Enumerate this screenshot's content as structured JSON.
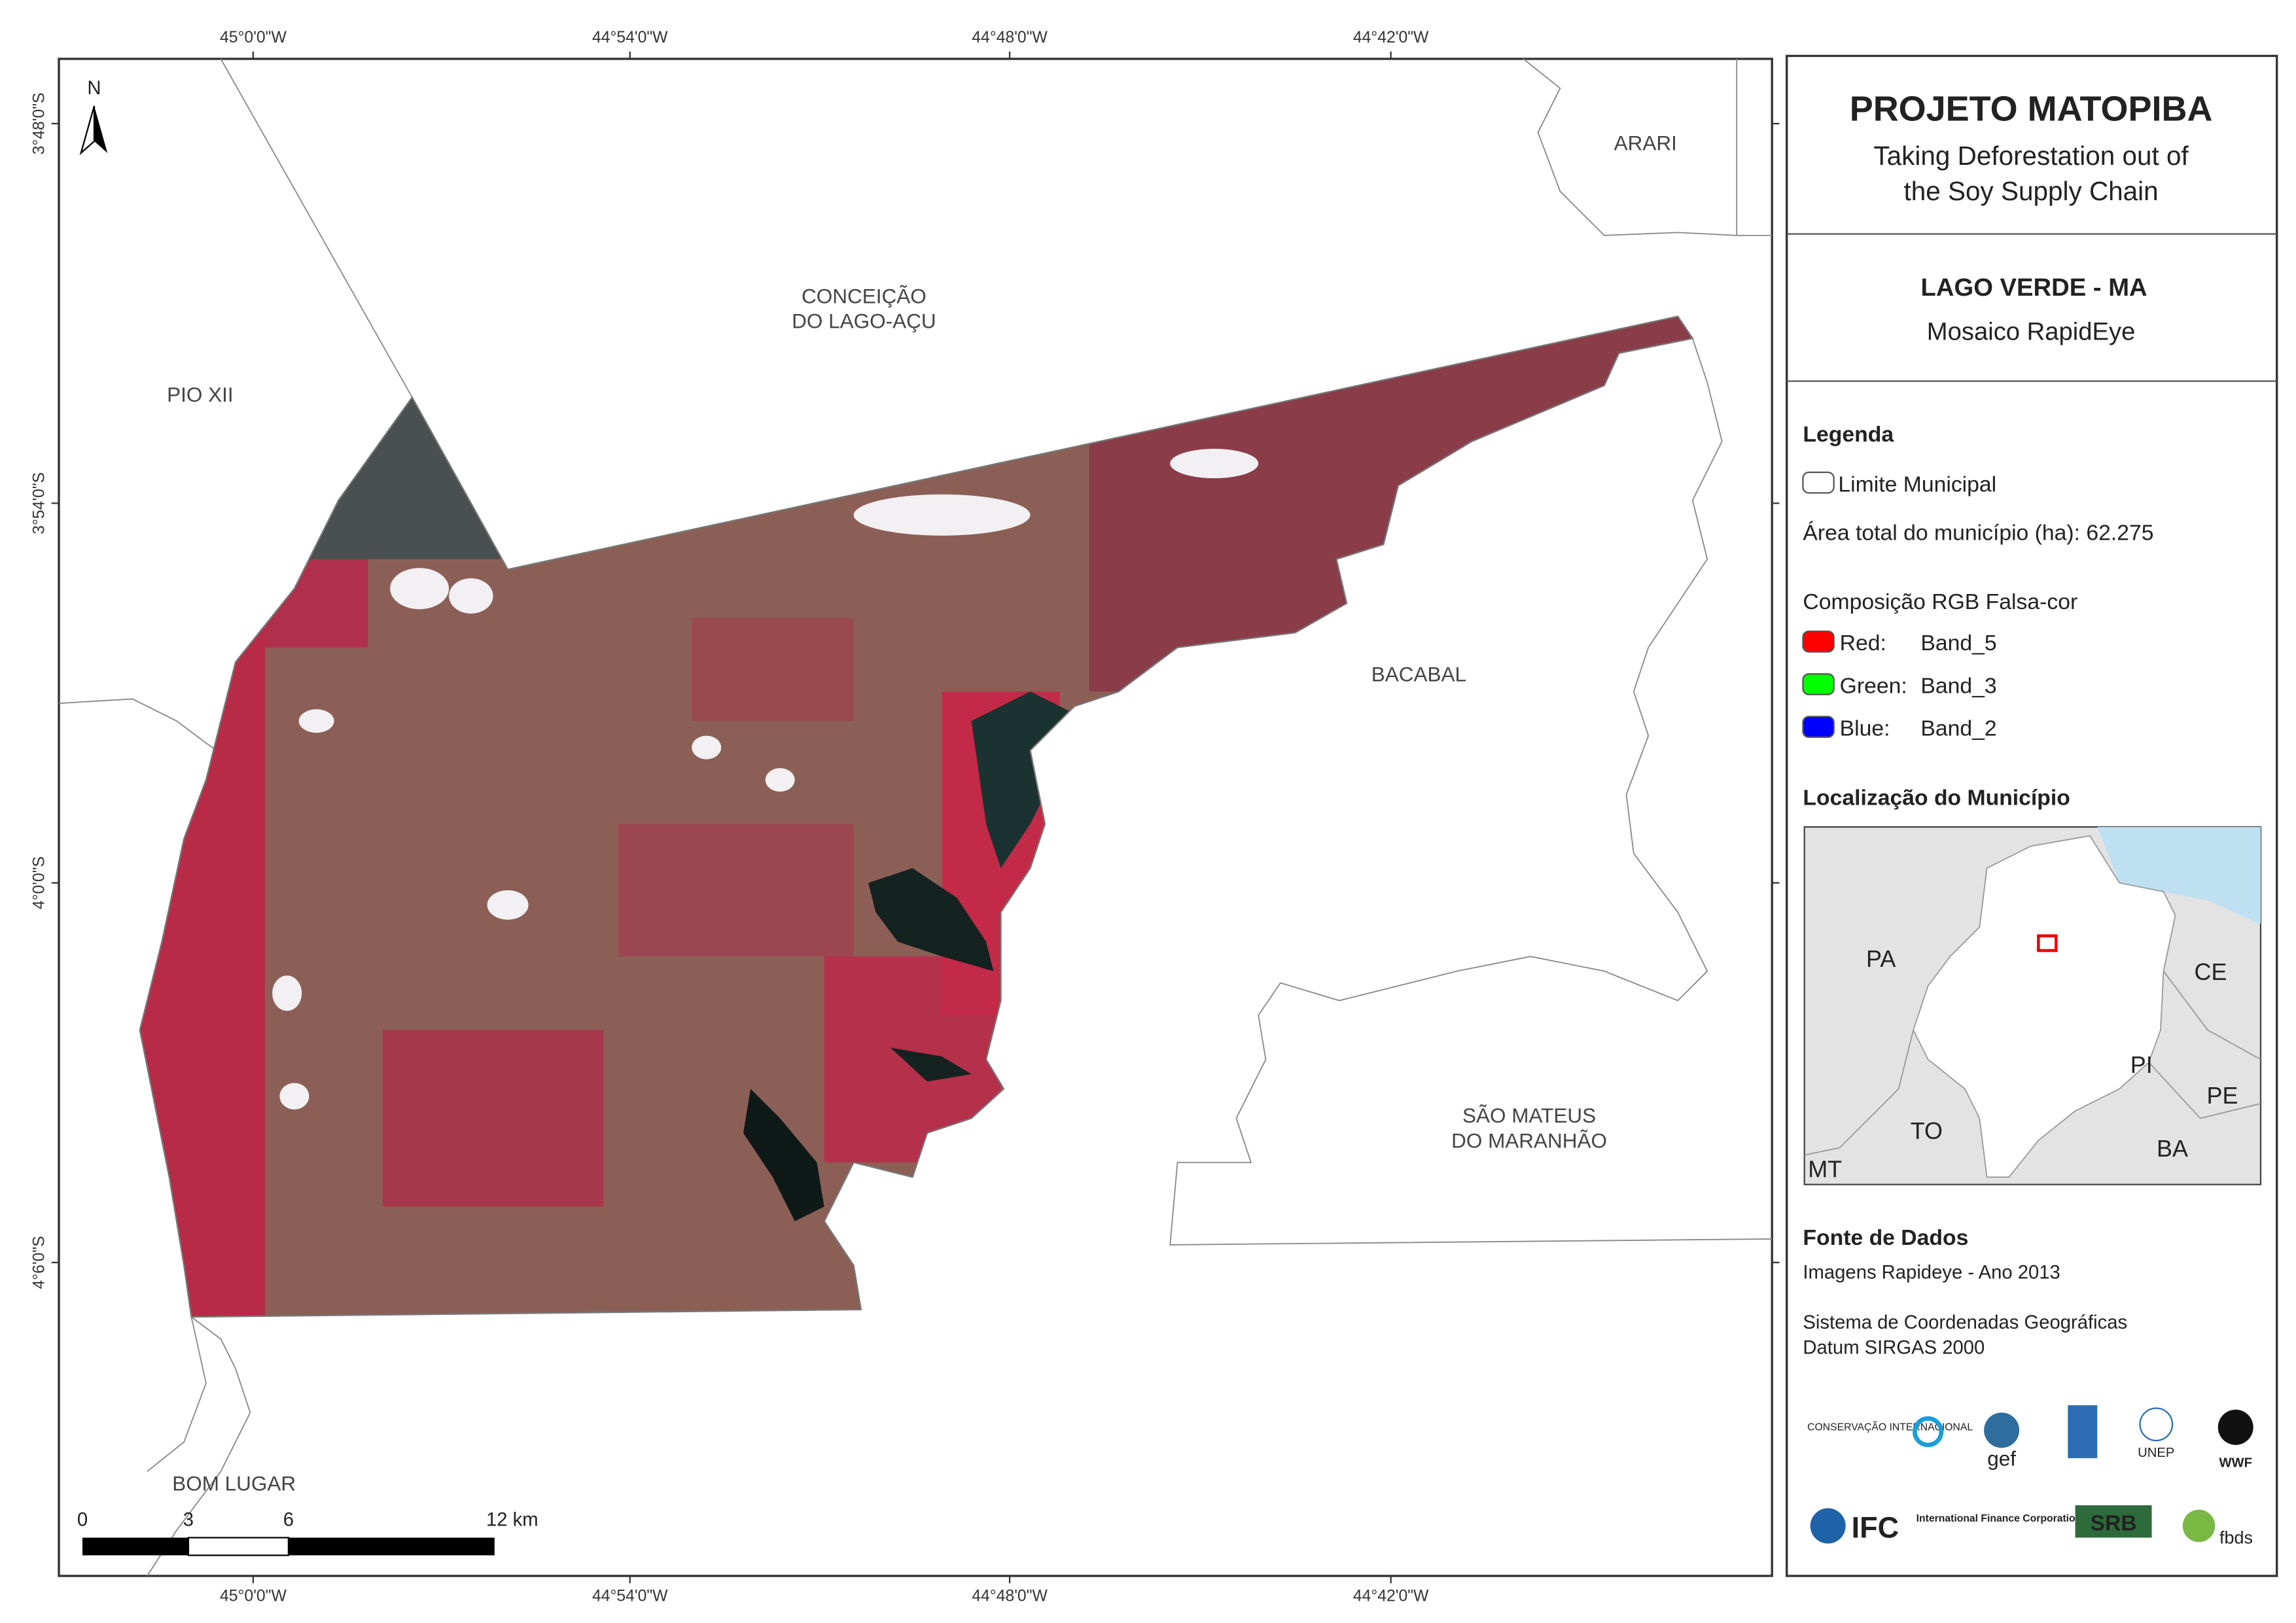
{
  "map": {
    "north_arrow": "N",
    "lon_ticks": [
      "45°0'0\"W",
      "44°54'0\"W",
      "44°48'0\"W",
      "44°42'0\"W"
    ],
    "lat_ticks": [
      "3°48'0\"S",
      "3°54'0\"S",
      "4°0'0\"S",
      "4°6'0\"S"
    ],
    "places": [
      {
        "lines": [
          "PIO XII"
        ]
      },
      {
        "lines": [
          "CONCEIÇÃO",
          "DO LAGO-AÇU"
        ]
      },
      {
        "lines": [
          "ARARI"
        ]
      },
      {
        "lines": [
          "BACABAL"
        ]
      },
      {
        "lines": [
          "SÃO MATEUS",
          "DO MARANHÃO"
        ]
      },
      {
        "lines": [
          "BOM LUGAR"
        ]
      }
    ],
    "scale_bar": [
      "0",
      "3",
      "6",
      "12 km"
    ]
  },
  "panel": {
    "title": "PROJETO MATOPIBA",
    "subtitle": [
      "Taking Deforestation out of",
      "the Soy Supply Chain"
    ],
    "municipality": "LAGO VERDE - MA",
    "mosaic": "Mosaico RapidEye",
    "legend": {
      "heading": "Legenda",
      "boundary": "Limite Municipal",
      "area": "Área total do município (ha): 62.275",
      "composition": "Composição RGB Falsa-cor",
      "bands": [
        {
          "channel": "Red:",
          "band": "Band_5"
        },
        {
          "channel": "Green:",
          "band": "Band_3"
        },
        {
          "channel": "Blue:",
          "band": "Band_2"
        }
      ]
    },
    "location": {
      "heading": "Localização do Município",
      "labels": [
        "PA",
        "CE",
        "PI",
        "PE",
        "TO",
        "BA",
        "MT"
      ]
    },
    "sources": {
      "heading": "Fonte de Dados",
      "lines": [
        "Imagens Rapideye - Ano 2013",
        "Sistema de Coordenadas Geográficas",
        "Datum SIRGAS 2000"
      ]
    },
    "logos": [
      "CONSERVAÇÃO INTERNACIONAL",
      "gef",
      "UNEP",
      "WWF",
      "IFC",
      "International Finance Corporation",
      "SRB",
      "fbds"
    ]
  }
}
